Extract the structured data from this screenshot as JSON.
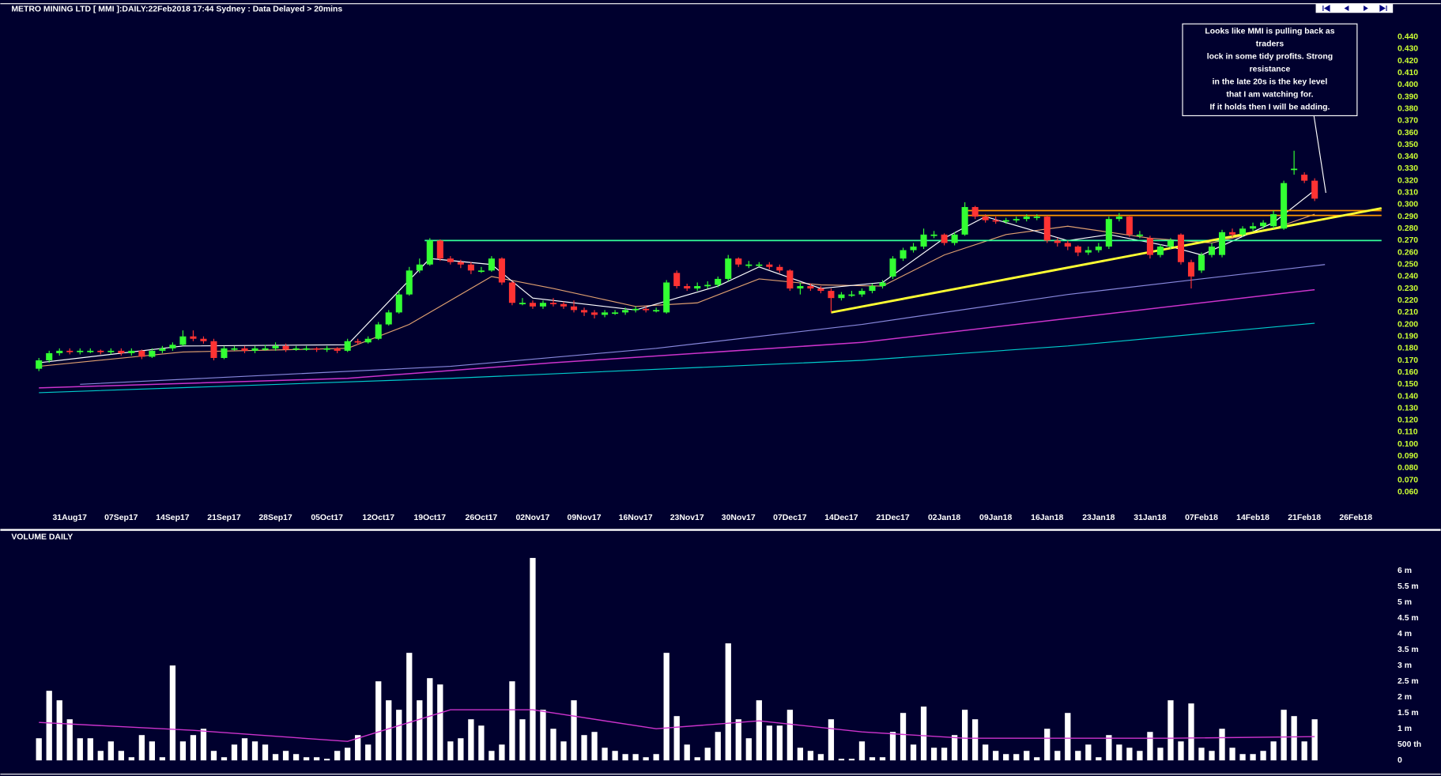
{
  "chart_data": [
    {
      "type": "candlestick",
      "title": "METRO MINING LTD [ MMI ]:DAILY:22Feb2018 17:44 Sydney : Data Delayed > 20mins",
      "up_color": "#33ff33",
      "down_color": "#ff3333",
      "open": [
        0.163,
        0.17,
        0.176,
        0.178,
        0.177,
        0.178,
        0.178,
        0.177,
        0.178,
        0.176,
        0.178,
        0.173,
        0.178,
        0.18,
        0.183,
        0.19,
        0.188,
        0.186,
        0.172,
        0.18,
        0.18,
        0.178,
        0.18,
        0.18,
        0.182,
        0.179,
        0.18,
        0.18,
        0.179,
        0.18,
        0.178,
        0.186,
        0.185,
        0.188,
        0.2,
        0.21,
        0.225,
        0.245,
        0.25,
        0.27,
        0.255,
        0.252,
        0.25,
        0.245,
        0.245,
        0.255,
        0.235,
        0.218,
        0.218,
        0.215,
        0.218,
        0.217,
        0.215,
        0.212,
        0.21,
        0.208,
        0.21,
        0.21,
        0.212,
        0.213,
        0.212,
        0.21,
        0.243,
        0.232,
        0.23,
        0.232,
        0.233,
        0.238,
        0.255,
        0.25,
        0.25,
        0.25,
        0.248,
        0.245,
        0.23,
        0.232,
        0.23,
        0.228,
        0.222,
        0.225,
        0.225,
        0.228,
        0.232,
        0.24,
        0.255,
        0.262,
        0.265,
        0.275,
        0.275,
        0.268,
        0.275,
        0.298,
        0.29,
        0.287,
        0.286,
        0.287,
        0.288,
        0.29,
        0.29,
        0.27,
        0.268,
        0.265,
        0.26,
        0.262,
        0.265,
        0.288,
        0.29,
        0.275,
        0.272,
        0.258,
        0.265,
        0.275,
        0.252,
        0.245,
        0.258,
        0.258,
        0.277,
        0.275,
        0.28,
        0.282,
        0.282,
        0.28,
        0.33,
        0.325,
        0.32
      ],
      "high": [
        0.172,
        0.178,
        0.18,
        0.18,
        0.18,
        0.18,
        0.179,
        0.18,
        0.18,
        0.18,
        0.179,
        0.18,
        0.182,
        0.185,
        0.195,
        0.195,
        0.19,
        0.188,
        0.182,
        0.182,
        0.182,
        0.182,
        0.183,
        0.185,
        0.184,
        0.182,
        0.182,
        0.181,
        0.182,
        0.181,
        0.188,
        0.188,
        0.19,
        0.202,
        0.212,
        0.228,
        0.248,
        0.255,
        0.272,
        0.271,
        0.257,
        0.254,
        0.252,
        0.248,
        0.257,
        0.256,
        0.236,
        0.222,
        0.22,
        0.22,
        0.222,
        0.219,
        0.22,
        0.214,
        0.212,
        0.212,
        0.212,
        0.214,
        0.215,
        0.215,
        0.214,
        0.237,
        0.245,
        0.234,
        0.235,
        0.236,
        0.24,
        0.258,
        0.256,
        0.253,
        0.252,
        0.252,
        0.25,
        0.246,
        0.235,
        0.234,
        0.232,
        0.23,
        0.227,
        0.228,
        0.23,
        0.234,
        0.237,
        0.257,
        0.264,
        0.268,
        0.28,
        0.278,
        0.276,
        0.277,
        0.302,
        0.299,
        0.292,
        0.29,
        0.289,
        0.29,
        0.292,
        0.292,
        0.291,
        0.272,
        0.27,
        0.266,
        0.265,
        0.268,
        0.29,
        0.293,
        0.291,
        0.278,
        0.274,
        0.267,
        0.272,
        0.276,
        0.254,
        0.26,
        0.268,
        0.279,
        0.28,
        0.282,
        0.285,
        0.287,
        0.295,
        0.32,
        0.345,
        0.327,
        0.322
      ],
      "low": [
        0.161,
        0.168,
        0.174,
        0.175,
        0.175,
        0.176,
        0.175,
        0.175,
        0.174,
        0.174,
        0.171,
        0.172,
        0.176,
        0.178,
        0.182,
        0.186,
        0.184,
        0.17,
        0.171,
        0.178,
        0.176,
        0.176,
        0.178,
        0.178,
        0.177,
        0.178,
        0.178,
        0.177,
        0.177,
        0.176,
        0.177,
        0.183,
        0.184,
        0.187,
        0.199,
        0.209,
        0.224,
        0.243,
        0.249,
        0.253,
        0.25,
        0.247,
        0.242,
        0.243,
        0.244,
        0.233,
        0.216,
        0.216,
        0.213,
        0.213,
        0.215,
        0.213,
        0.21,
        0.207,
        0.205,
        0.206,
        0.208,
        0.208,
        0.21,
        0.21,
        0.21,
        0.209,
        0.23,
        0.228,
        0.228,
        0.23,
        0.231,
        0.236,
        0.248,
        0.247,
        0.248,
        0.246,
        0.243,
        0.228,
        0.225,
        0.228,
        0.226,
        0.21,
        0.22,
        0.223,
        0.223,
        0.226,
        0.23,
        0.238,
        0.253,
        0.26,
        0.263,
        0.272,
        0.266,
        0.266,
        0.274,
        0.288,
        0.285,
        0.284,
        0.284,
        0.285,
        0.286,
        0.287,
        0.268,
        0.265,
        0.262,
        0.257,
        0.258,
        0.26,
        0.263,
        0.286,
        0.273,
        0.272,
        0.255,
        0.256,
        0.263,
        0.25,
        0.23,
        0.243,
        0.256,
        0.256,
        0.273,
        0.273,
        0.278,
        0.28,
        0.28,
        0.279,
        0.325,
        0.318,
        0.303
      ],
      "close": [
        0.17,
        0.176,
        0.178,
        0.177,
        0.178,
        0.178,
        0.177,
        0.178,
        0.176,
        0.178,
        0.173,
        0.178,
        0.18,
        0.183,
        0.19,
        0.188,
        0.186,
        0.172,
        0.18,
        0.18,
        0.178,
        0.18,
        0.18,
        0.182,
        0.179,
        0.18,
        0.18,
        0.179,
        0.18,
        0.178,
        0.186,
        0.185,
        0.188,
        0.2,
        0.21,
        0.225,
        0.245,
        0.25,
        0.27,
        0.255,
        0.252,
        0.25,
        0.245,
        0.245,
        0.255,
        0.235,
        0.218,
        0.218,
        0.215,
        0.218,
        0.217,
        0.215,
        0.212,
        0.21,
        0.208,
        0.21,
        0.21,
        0.212,
        0.213,
        0.212,
        0.212,
        0.235,
        0.232,
        0.23,
        0.232,
        0.233,
        0.238,
        0.255,
        0.25,
        0.25,
        0.25,
        0.248,
        0.245,
        0.23,
        0.232,
        0.23,
        0.228,
        0.222,
        0.225,
        0.225,
        0.228,
        0.232,
        0.235,
        0.255,
        0.262,
        0.265,
        0.275,
        0.275,
        0.268,
        0.275,
        0.298,
        0.29,
        0.287,
        0.286,
        0.287,
        0.288,
        0.29,
        0.29,
        0.27,
        0.268,
        0.265,
        0.26,
        0.262,
        0.265,
        0.288,
        0.29,
        0.275,
        0.275,
        0.258,
        0.265,
        0.27,
        0.252,
        0.24,
        0.258,
        0.265,
        0.277,
        0.275,
        0.28,
        0.282,
        0.285,
        0.292,
        0.318,
        0.33,
        0.32,
        0.305
      ],
      "xlim": [
        -3,
        130.5
      ],
      "xticks": [
        {
          "value": 3,
          "label": "31Aug17"
        },
        {
          "value": 8,
          "label": "07Sep17"
        },
        {
          "value": 13,
          "label": "14Sep17"
        },
        {
          "value": 18,
          "label": "21Sep17"
        },
        {
          "value": 23,
          "label": "28Sep17"
        },
        {
          "value": 28,
          "label": "05Oct17"
        },
        {
          "value": 33,
          "label": "12Oct17"
        },
        {
          "value": 38,
          "label": "19Oct17"
        },
        {
          "value": 43,
          "label": "26Oct17"
        },
        {
          "value": 48,
          "label": "02Nov17"
        },
        {
          "value": 53,
          "label": "09Nov17"
        },
        {
          "value": 58,
          "label": "16Nov17"
        },
        {
          "value": 63,
          "label": "23Nov17"
        },
        {
          "value": 68,
          "label": "30Nov17"
        },
        {
          "value": 73,
          "label": "07Dec17"
        },
        {
          "value": 78,
          "label": "14Dec17"
        },
        {
          "value": 83,
          "label": "21Dec17"
        },
        {
          "value": 88,
          "label": "02Jan18"
        },
        {
          "value": 93,
          "label": "09Jan18"
        },
        {
          "value": 98,
          "label": "16Jan18"
        },
        {
          "value": 103,
          "label": "23Jan18"
        },
        {
          "value": 108,
          "label": "31Jan18"
        },
        {
          "value": 113,
          "label": "07Feb18"
        },
        {
          "value": 118,
          "label": "14Feb18"
        },
        {
          "value": 123,
          "label": "21Feb18"
        },
        {
          "value": 128,
          "label": "26Feb18"
        }
      ],
      "ylim": [
        0.03,
        0.467
      ],
      "yticks": [
        {
          "value": 0.06,
          "label": "0.060"
        },
        {
          "value": 0.07,
          "label": "0.070"
        },
        {
          "value": 0.08,
          "label": "0.080"
        },
        {
          "value": 0.09,
          "label": "0.090"
        },
        {
          "value": 0.1,
          "label": "0.100"
        },
        {
          "value": 0.11,
          "label": "0.110"
        },
        {
          "value": 0.12,
          "label": "0.120"
        },
        {
          "value": 0.13,
          "label": "0.130"
        },
        {
          "value": 0.14,
          "label": "0.140"
        },
        {
          "value": 0.15,
          "label": "0.150"
        },
        {
          "value": 0.16,
          "label": "0.160"
        },
        {
          "value": 0.17,
          "label": "0.170"
        },
        {
          "value": 0.18,
          "label": "0.180"
        },
        {
          "value": 0.19,
          "label": "0.190"
        },
        {
          "value": 0.2,
          "label": "0.200"
        },
        {
          "value": 0.21,
          "label": "0.210"
        },
        {
          "value": 0.22,
          "label": "0.220"
        },
        {
          "value": 0.23,
          "label": "0.230"
        },
        {
          "value": 0.24,
          "label": "0.240"
        },
        {
          "value": 0.25,
          "label": "0.250"
        },
        {
          "value": 0.26,
          "label": "0.260"
        },
        {
          "value": 0.27,
          "label": "0.270"
        },
        {
          "value": 0.28,
          "label": "0.280"
        },
        {
          "value": 0.29,
          "label": "0.290"
        },
        {
          "value": 0.3,
          "label": "0.300"
        },
        {
          "value": 0.31,
          "label": "0.310"
        },
        {
          "value": 0.32,
          "label": "0.320"
        },
        {
          "value": 0.33,
          "label": "0.330"
        },
        {
          "value": 0.34,
          "label": "0.340"
        },
        {
          "value": 0.35,
          "label": "0.350"
        },
        {
          "value": 0.36,
          "label": "0.360"
        },
        {
          "value": 0.37,
          "label": "0.370"
        },
        {
          "value": 0.38,
          "label": "0.380"
        },
        {
          "value": 0.39,
          "label": "0.390"
        },
        {
          "value": 0.4,
          "label": "0.400"
        },
        {
          "value": 0.41,
          "label": "0.410"
        },
        {
          "value": 0.42,
          "label": "0.420"
        },
        {
          "value": 0.43,
          "label": "0.430"
        },
        {
          "value": 0.44,
          "label": "0.440"
        }
      ],
      "lines": [
        {
          "color": "#00cccc",
          "width": 1,
          "x": [
            0,
            40,
            80,
            100,
            124
          ],
          "values": [
            0.143,
            0.155,
            0.17,
            0.182,
            0.201
          ]
        },
        {
          "color": "#cc33cc",
          "width": 1.3,
          "x": [
            0,
            30,
            50,
            80,
            100,
            124
          ],
          "values": [
            0.147,
            0.155,
            0.168,
            0.185,
            0.205,
            0.229
          ]
        },
        {
          "color": "#8888dd",
          "width": 1,
          "x": [
            4,
            40,
            60,
            80,
            100,
            125
          ],
          "values": [
            0.15,
            0.165,
            0.18,
            0.2,
            0.225,
            0.25
          ]
        },
        {
          "color": "#e0a070",
          "width": 1,
          "x": [
            0,
            14,
            30,
            36,
            44,
            50,
            58,
            64,
            70,
            76,
            82,
            88,
            94,
            100,
            108,
            114,
            120,
            124
          ],
          "values": [
            0.165,
            0.177,
            0.18,
            0.2,
            0.24,
            0.23,
            0.215,
            0.218,
            0.238,
            0.233,
            0.232,
            0.258,
            0.275,
            0.282,
            0.272,
            0.268,
            0.28,
            0.292
          ]
        },
        {
          "color": "#ffffff",
          "width": 1,
          "x": [
            0,
            14,
            30,
            38,
            44,
            48,
            58,
            66,
            70,
            76,
            82,
            88,
            92,
            100,
            104,
            110,
            113,
            120,
            124
          ],
          "values": [
            0.168,
            0.182,
            0.183,
            0.255,
            0.25,
            0.222,
            0.212,
            0.232,
            0.248,
            0.23,
            0.235,
            0.272,
            0.29,
            0.27,
            0.275,
            0.265,
            0.258,
            0.285,
            0.312
          ]
        },
        {
          "color": "#33ff99",
          "width": 1.5,
          "x": [
            37.5,
            130.5
          ],
          "values": [
            0.27,
            0.27
          ]
        },
        {
          "color": "#ff9900",
          "width": 1.5,
          "x": [
            90,
            130.5
          ],
          "values": [
            0.295,
            0.295
          ]
        },
        {
          "color": "#ff9900",
          "width": 1.5,
          "x": [
            90,
            130.5
          ],
          "values": [
            0.291,
            0.291
          ]
        },
        {
          "color": "#ffff33",
          "width": 2.5,
          "x": [
            77,
            130.5
          ],
          "values": [
            0.21,
            0.297
          ]
        }
      ],
      "annotation": [
        "Looks like MMI is pulling back as",
        "traders",
        "lock in some tidy profits. Strong",
        "resistance",
        "in the late 20s is the key level",
        "that I am watching for.",
        "If it holds then I will be adding."
      ]
    },
    {
      "type": "bar",
      "title": "VOLUME DAILY",
      "color": "#ffffff",
      "values": [
        0.7,
        2.2,
        1.9,
        1.3,
        0.7,
        0.7,
        0.3,
        0.6,
        0.3,
        0.1,
        0.8,
        0.6,
        0.1,
        3.0,
        0.6,
        0.8,
        1.0,
        0.3,
        0.1,
        0.5,
        0.7,
        0.6,
        0.5,
        0.2,
        0.3,
        0.2,
        0.1,
        0.1,
        0.05,
        0.3,
        0.4,
        0.8,
        0.5,
        2.5,
        1.9,
        1.6,
        3.4,
        1.9,
        2.6,
        2.4,
        0.6,
        0.7,
        1.3,
        1.1,
        0.3,
        0.5,
        2.5,
        1.3,
        6.4,
        1.6,
        1.0,
        0.6,
        1.9,
        0.8,
        0.9,
        0.4,
        0.3,
        0.2,
        0.2,
        0.1,
        0.2,
        3.4,
        1.4,
        0.5,
        0.1,
        0.4,
        0.9,
        3.7,
        1.3,
        0.7,
        1.9,
        1.1,
        1.1,
        1.6,
        0.4,
        0.3,
        0.2,
        1.3,
        0.05,
        0.05,
        0.6,
        0.1,
        0.1,
        0.9,
        1.5,
        0.5,
        1.7,
        0.4,
        0.4,
        0.8,
        1.6,
        1.3,
        0.5,
        0.3,
        0.2,
        0.2,
        0.3,
        0.1,
        1.0,
        0.3,
        1.5,
        0.3,
        0.5,
        0.1,
        0.8,
        0.5,
        0.4,
        0.3,
        0.9,
        0.4,
        1.9,
        0.6,
        1.8,
        0.4,
        0.3,
        1.0,
        0.4,
        0.2,
        0.2,
        0.3,
        0.6,
        1.6,
        1.4,
        0.6,
        1.3
      ],
      "ylim": [
        0,
        7.2
      ],
      "yticks": [
        0,
        {
          "value": 0.5,
          "label": "500 th"
        },
        {
          "value": 1,
          "label": "1 m"
        },
        {
          "value": 1.5,
          "label": "1.5 m"
        },
        {
          "value": 2,
          "label": "2 m"
        },
        {
          "value": 2.5,
          "label": "2.5 m"
        },
        {
          "value": 3,
          "label": "3 m"
        },
        {
          "value": 3.5,
          "label": "3.5 m"
        },
        {
          "value": 4,
          "label": "4 m"
        },
        {
          "value": 4.5,
          "label": "4.5 m"
        },
        {
          "value": 5,
          "label": "5 m"
        },
        {
          "value": 5.5,
          "label": "5.5 m"
        },
        {
          "value": 6,
          "label": "6 m"
        }
      ],
      "lines": [
        {
          "color": "#cc33cc",
          "width": 1.2,
          "x": [
            0,
            15,
            30,
            40,
            48,
            60,
            70,
            80,
            90,
            110,
            124
          ],
          "values": [
            1.2,
            0.95,
            0.6,
            1.6,
            1.6,
            1.0,
            1.25,
            0.9,
            0.7,
            0.7,
            0.75
          ]
        }
      ]
    }
  ]
}
